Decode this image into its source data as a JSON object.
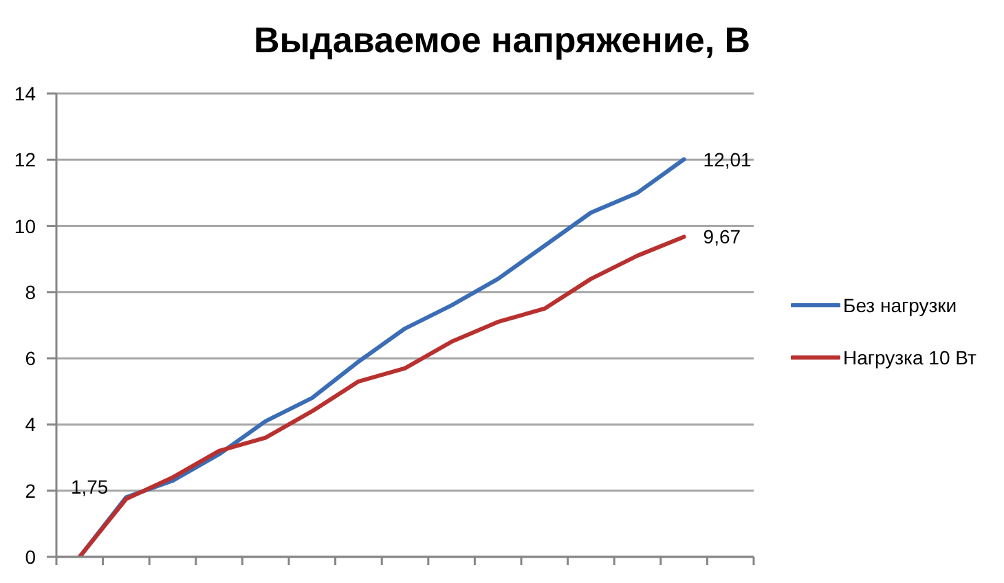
{
  "chart_data": {
    "type": "line",
    "title": "Выдаваемое напряжение, В",
    "categories": [
      null,
      null,
      null,
      null,
      null,
      null,
      null,
      null,
      null,
      null,
      null,
      null,
      null,
      null,
      null
    ],
    "series": [
      {
        "name": "Без нагрузки",
        "color": "#3a6db5",
        "values": [
          0,
          1.8,
          2.3,
          3.1,
          4.1,
          4.8,
          5.9,
          6.9,
          7.6,
          8.4,
          9.4,
          10.4,
          11.0,
          12.01,
          null
        ],
        "value_labels": [
          null,
          null,
          null,
          null,
          null,
          null,
          null,
          null,
          null,
          null,
          null,
          null,
          null,
          "12,01",
          null
        ]
      },
      {
        "name": "Нагрузка 10 Вт",
        "color": "#b8312f",
        "values": [
          0,
          1.75,
          2.4,
          3.2,
          3.6,
          4.4,
          5.3,
          5.7,
          6.5,
          7.1,
          7.5,
          8.4,
          9.1,
          9.67,
          null
        ],
        "value_labels": [
          null,
          "1,75",
          null,
          null,
          null,
          null,
          null,
          null,
          null,
          null,
          null,
          null,
          null,
          "9,67",
          null
        ]
      }
    ],
    "ylim": [
      0,
      14
    ],
    "yticks": [
      0,
      2,
      4,
      6,
      8,
      10,
      12,
      14
    ],
    "grid": "y",
    "legend": "right",
    "tick_labels": "y",
    "marker": "none",
    "line_style": "solid"
  }
}
